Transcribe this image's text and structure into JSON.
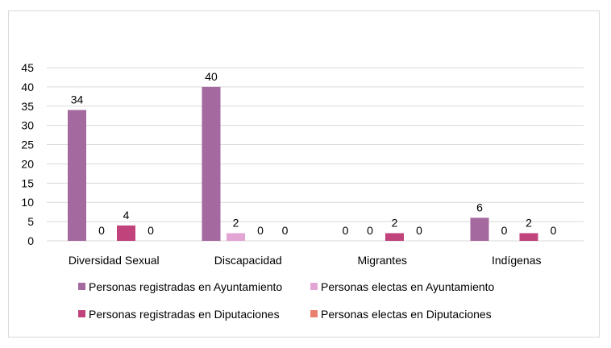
{
  "chart_data": {
    "type": "bar",
    "title": "",
    "xlabel": "",
    "ylabel": "",
    "ylim": [
      0,
      45
    ],
    "yticks": [
      0,
      5,
      10,
      15,
      20,
      25,
      30,
      35,
      40,
      45
    ],
    "categories": [
      "Diversidad Sexual",
      "Discapacidad",
      "Migrantes",
      "Indígenas"
    ],
    "series": [
      {
        "name": "Personas registradas en Ayuntamiento",
        "color": "#a4699f",
        "values": [
          34,
          40,
          0,
          6
        ]
      },
      {
        "name": "Personas electas en Ayuntamiento",
        "color": "#e3a6d4",
        "values": [
          0,
          2,
          0,
          0
        ]
      },
      {
        "name": "Personas registradas en Diputaciones",
        "color": "#c0437c",
        "values": [
          4,
          0,
          2,
          2
        ]
      },
      {
        "name": "Personas electas en Diputaciones",
        "color": "#e8826f",
        "values": [
          0,
          0,
          0,
          0
        ]
      }
    ],
    "grid": true,
    "legend_position": "bottom"
  }
}
